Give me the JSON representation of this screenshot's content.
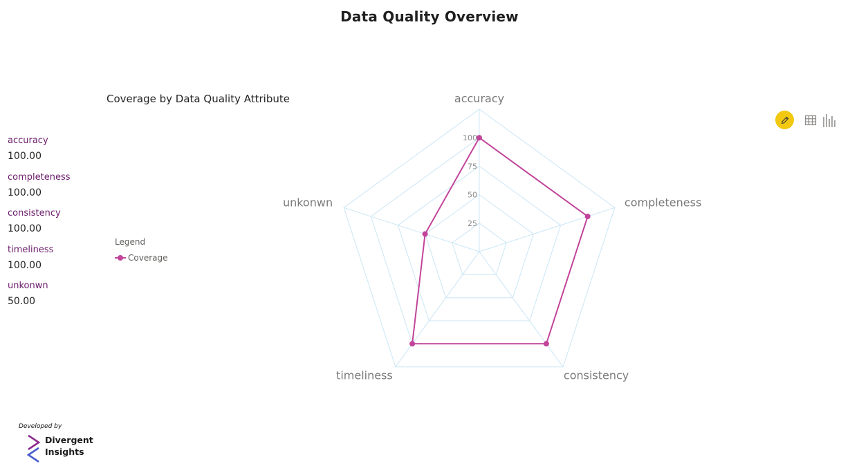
{
  "page_title": "Data Quality Overview",
  "cards": [
    {
      "label": "accuracy",
      "value": "100.00"
    },
    {
      "label": "completeness",
      "value": "100.00"
    },
    {
      "label": "consistency",
      "value": "100.00"
    },
    {
      "label": "timeliness",
      "value": "100.00"
    },
    {
      "label": "unkonwn",
      "value": "50.00"
    }
  ],
  "legend": {
    "title": "Legend",
    "items": [
      "Coverage"
    ]
  },
  "toolbar": {
    "edit_icon": "pencil-icon",
    "table_icon": "table-grid-icon",
    "chart_icon": "bar-chart-icon",
    "edit_color": "#f2c811"
  },
  "footer": {
    "developed_by": "Developed by",
    "brand_name": "Divergent Insights"
  },
  "colors": {
    "series": "#c1449a",
    "grid": "#cbe6f5",
    "card_label": "#6a1a6a"
  },
  "chart_data": {
    "type": "radar",
    "title": "Coverage by Data Quality Attribute",
    "categories": [
      "accuracy",
      "completeness",
      "consistency",
      "timeliness",
      "unkonwn"
    ],
    "series": [
      {
        "name": "Coverage",
        "values": [
          100,
          100,
          100,
          100,
          50
        ]
      }
    ],
    "range": [
      0,
      125
    ],
    "ticks": [
      25,
      50,
      75,
      100
    ],
    "grid": true,
    "legend_position": "left"
  }
}
